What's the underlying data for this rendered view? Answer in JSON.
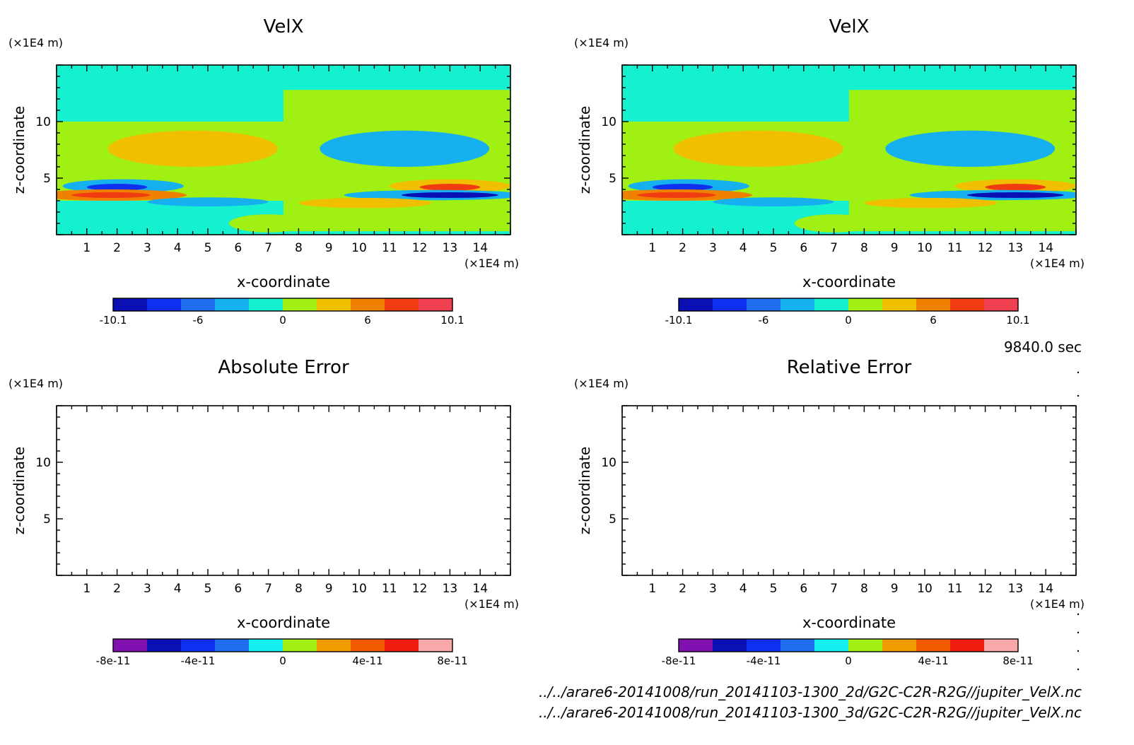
{
  "time_label": "9840.0 sec",
  "files": [
    "../../arare6-20141008/run_20141103-1300_2d/G2C-C2R-R2G//jupiter_VelX.nc",
    "../../arare6-20141008/run_20141103-1300_3d/G2C-C2R-R2G//jupiter_VelX.nc"
  ],
  "chart_data": [
    {
      "type": "heatmap",
      "title": "VelX",
      "xlabel": "x-coordinate",
      "ylabel": "z-coordinate",
      "x_unit": "(×1E4 m)",
      "y_unit": "(×1E4 m)",
      "xlim": [
        0,
        15
      ],
      "ylim": [
        0,
        15
      ],
      "x_ticks": [
        1,
        2,
        3,
        4,
        5,
        6,
        7,
        8,
        9,
        10,
        11,
        12,
        13,
        14
      ],
      "y_ticks": [
        5,
        10
      ],
      "colorbar": {
        "colors": [
          "#0a10b4",
          "#1030f0",
          "#1e6cf0",
          "#16b0f0",
          "#14f0d0",
          "#a0f014",
          "#f0c000",
          "#f08000",
          "#f03c10",
          "#f04050"
        ],
        "tick_labels": [
          "-10.1",
          "-6",
          "0",
          "6",
          "10.1"
        ]
      },
      "features": [
        {
          "kind": "rect",
          "x0": 0,
          "x1": 15,
          "z0": 0,
          "z1": 15,
          "color": "#14f0d0"
        },
        {
          "kind": "rect",
          "x0": 7.5,
          "x1": 15,
          "z0": 0,
          "z1": 12.8,
          "color": "#a0f014"
        },
        {
          "kind": "rect",
          "x0": 0,
          "x1": 7.5,
          "z0": 3.0,
          "z1": 10.0,
          "color": "#a0f014"
        },
        {
          "kind": "rect",
          "x0": 7.5,
          "x1": 15,
          "z0": 0,
          "z1": 0.3,
          "color": "#14f0d0"
        },
        {
          "kind": "ellipse",
          "cx": 4.5,
          "cz": 7.6,
          "rx": 2.8,
          "rz": 1.6,
          "color": "#f0c000"
        },
        {
          "kind": "ellipse",
          "cx": 11.5,
          "cz": 7.6,
          "rx": 2.8,
          "rz": 1.6,
          "color": "#16b0f0"
        },
        {
          "kind": "ellipse",
          "cx": 2.2,
          "cz": 4.3,
          "rx": 2.0,
          "rz": 0.6,
          "color": "#16b0f0"
        },
        {
          "kind": "ellipse",
          "cx": 2.0,
          "cz": 4.2,
          "rx": 1.0,
          "rz": 0.3,
          "color": "#1030f0"
        },
        {
          "kind": "ellipse",
          "cx": 1.8,
          "cz": 3.5,
          "rx": 2.5,
          "rz": 0.5,
          "color": "#f08000"
        },
        {
          "kind": "ellipse",
          "cx": 1.8,
          "cz": 3.5,
          "rx": 1.3,
          "rz": 0.25,
          "color": "#f03c10"
        },
        {
          "kind": "ellipse",
          "cx": 5.0,
          "cz": 2.9,
          "rx": 2.0,
          "rz": 0.4,
          "color": "#16b0f0"
        },
        {
          "kind": "ellipse",
          "cx": 13.0,
          "cz": 4.3,
          "rx": 2.0,
          "rz": 0.6,
          "color": "#f0c000"
        },
        {
          "kind": "ellipse",
          "cx": 13.0,
          "cz": 4.2,
          "rx": 1.0,
          "rz": 0.3,
          "color": "#f03c10"
        },
        {
          "kind": "ellipse",
          "cx": 12.5,
          "cz": 3.5,
          "rx": 3.0,
          "rz": 0.45,
          "color": "#16b0f0"
        },
        {
          "kind": "ellipse",
          "cx": 13.0,
          "cz": 3.5,
          "rx": 1.6,
          "rz": 0.25,
          "color": "#0a10b4"
        },
        {
          "kind": "ellipse",
          "cx": 10.2,
          "cz": 2.8,
          "rx": 2.2,
          "rz": 0.45,
          "color": "#f0c000"
        },
        {
          "kind": "ellipse",
          "cx": 7.0,
          "cz": 1.0,
          "rx": 1.3,
          "rz": 0.8,
          "color": "#a0f014"
        }
      ]
    },
    {
      "type": "heatmap",
      "title": "VelX",
      "xlabel": "x-coordinate",
      "ylabel": "z-coordinate",
      "x_unit": "(×1E4 m)",
      "y_unit": "(×1E4 m)",
      "xlim": [
        0,
        15
      ],
      "ylim": [
        0,
        15
      ],
      "x_ticks": [
        1,
        2,
        3,
        4,
        5,
        6,
        7,
        8,
        9,
        10,
        11,
        12,
        13,
        14
      ],
      "y_ticks": [
        5,
        10
      ],
      "colorbar": {
        "colors": [
          "#0a10b4",
          "#1030f0",
          "#1e6cf0",
          "#16b0f0",
          "#14f0d0",
          "#a0f014",
          "#f0c000",
          "#f08000",
          "#f03c10",
          "#f04050"
        ],
        "tick_labels": [
          "-10.1",
          "-6",
          "0",
          "6",
          "10.1"
        ]
      },
      "features": [
        {
          "kind": "rect",
          "x0": 0,
          "x1": 15,
          "z0": 0,
          "z1": 15,
          "color": "#14f0d0"
        },
        {
          "kind": "rect",
          "x0": 7.5,
          "x1": 15,
          "z0": 0,
          "z1": 12.8,
          "color": "#a0f014"
        },
        {
          "kind": "rect",
          "x0": 0,
          "x1": 7.5,
          "z0": 3.0,
          "z1": 10.0,
          "color": "#a0f014"
        },
        {
          "kind": "rect",
          "x0": 7.5,
          "x1": 15,
          "z0": 0,
          "z1": 0.3,
          "color": "#14f0d0"
        },
        {
          "kind": "ellipse",
          "cx": 4.5,
          "cz": 7.6,
          "rx": 2.8,
          "rz": 1.6,
          "color": "#f0c000"
        },
        {
          "kind": "ellipse",
          "cx": 11.5,
          "cz": 7.6,
          "rx": 2.8,
          "rz": 1.6,
          "color": "#16b0f0"
        },
        {
          "kind": "ellipse",
          "cx": 2.2,
          "cz": 4.3,
          "rx": 2.0,
          "rz": 0.6,
          "color": "#16b0f0"
        },
        {
          "kind": "ellipse",
          "cx": 2.0,
          "cz": 4.2,
          "rx": 1.0,
          "rz": 0.3,
          "color": "#1030f0"
        },
        {
          "kind": "ellipse",
          "cx": 1.8,
          "cz": 3.5,
          "rx": 2.5,
          "rz": 0.5,
          "color": "#f08000"
        },
        {
          "kind": "ellipse",
          "cx": 1.8,
          "cz": 3.5,
          "rx": 1.3,
          "rz": 0.25,
          "color": "#f03c10"
        },
        {
          "kind": "ellipse",
          "cx": 5.0,
          "cz": 2.9,
          "rx": 2.0,
          "rz": 0.4,
          "color": "#16b0f0"
        },
        {
          "kind": "ellipse",
          "cx": 13.0,
          "cz": 4.3,
          "rx": 2.0,
          "rz": 0.6,
          "color": "#f0c000"
        },
        {
          "kind": "ellipse",
          "cx": 13.0,
          "cz": 4.2,
          "rx": 1.0,
          "rz": 0.3,
          "color": "#f03c10"
        },
        {
          "kind": "ellipse",
          "cx": 12.5,
          "cz": 3.5,
          "rx": 3.0,
          "rz": 0.45,
          "color": "#16b0f0"
        },
        {
          "kind": "ellipse",
          "cx": 13.0,
          "cz": 3.5,
          "rx": 1.6,
          "rz": 0.25,
          "color": "#0a10b4"
        },
        {
          "kind": "ellipse",
          "cx": 10.2,
          "cz": 2.8,
          "rx": 2.2,
          "rz": 0.45,
          "color": "#f0c000"
        },
        {
          "kind": "ellipse",
          "cx": 7.0,
          "cz": 1.0,
          "rx": 1.3,
          "rz": 0.8,
          "color": "#a0f014"
        }
      ]
    },
    {
      "type": "heatmap",
      "title": "Absolute Error",
      "xlabel": "x-coordinate",
      "ylabel": "z-coordinate",
      "x_unit": "(×1E4 m)",
      "y_unit": "(×1E4 m)",
      "xlim": [
        0,
        15
      ],
      "ylim": [
        0,
        15
      ],
      "x_ticks": [
        1,
        2,
        3,
        4,
        5,
        6,
        7,
        8,
        9,
        10,
        11,
        12,
        13,
        14
      ],
      "y_ticks": [
        5,
        10
      ],
      "colorbar": {
        "colors": [
          "#8010b0",
          "#0a10b4",
          "#1030f0",
          "#1e6cf0",
          "#14f0f0",
          "#a0f014",
          "#f09c00",
          "#f05a00",
          "#f01c10",
          "#f8a8a8"
        ],
        "tick_labels": [
          "-8e-11",
          "-4e-11",
          "0",
          "4e-11",
          "8e-11"
        ]
      },
      "features": []
    },
    {
      "type": "heatmap",
      "title": "Relative Error",
      "xlabel": "x-coordinate",
      "ylabel": "z-coordinate",
      "x_unit": "(×1E4 m)",
      "y_unit": "(×1E4 m)",
      "xlim": [
        0,
        15
      ],
      "ylim": [
        0,
        15
      ],
      "x_ticks": [
        1,
        2,
        3,
        4,
        5,
        6,
        7,
        8,
        9,
        10,
        11,
        12,
        13,
        14
      ],
      "y_ticks": [
        5,
        10
      ],
      "colorbar": {
        "colors": [
          "#8010b0",
          "#0a10b4",
          "#1030f0",
          "#1e6cf0",
          "#14f0f0",
          "#a0f014",
          "#f09c00",
          "#f05a00",
          "#f01c10",
          "#f8a8a8"
        ],
        "tick_labels": [
          "-8e-11",
          "-4e-11",
          "0",
          "4e-11",
          "8e-11"
        ]
      },
      "features": []
    }
  ]
}
